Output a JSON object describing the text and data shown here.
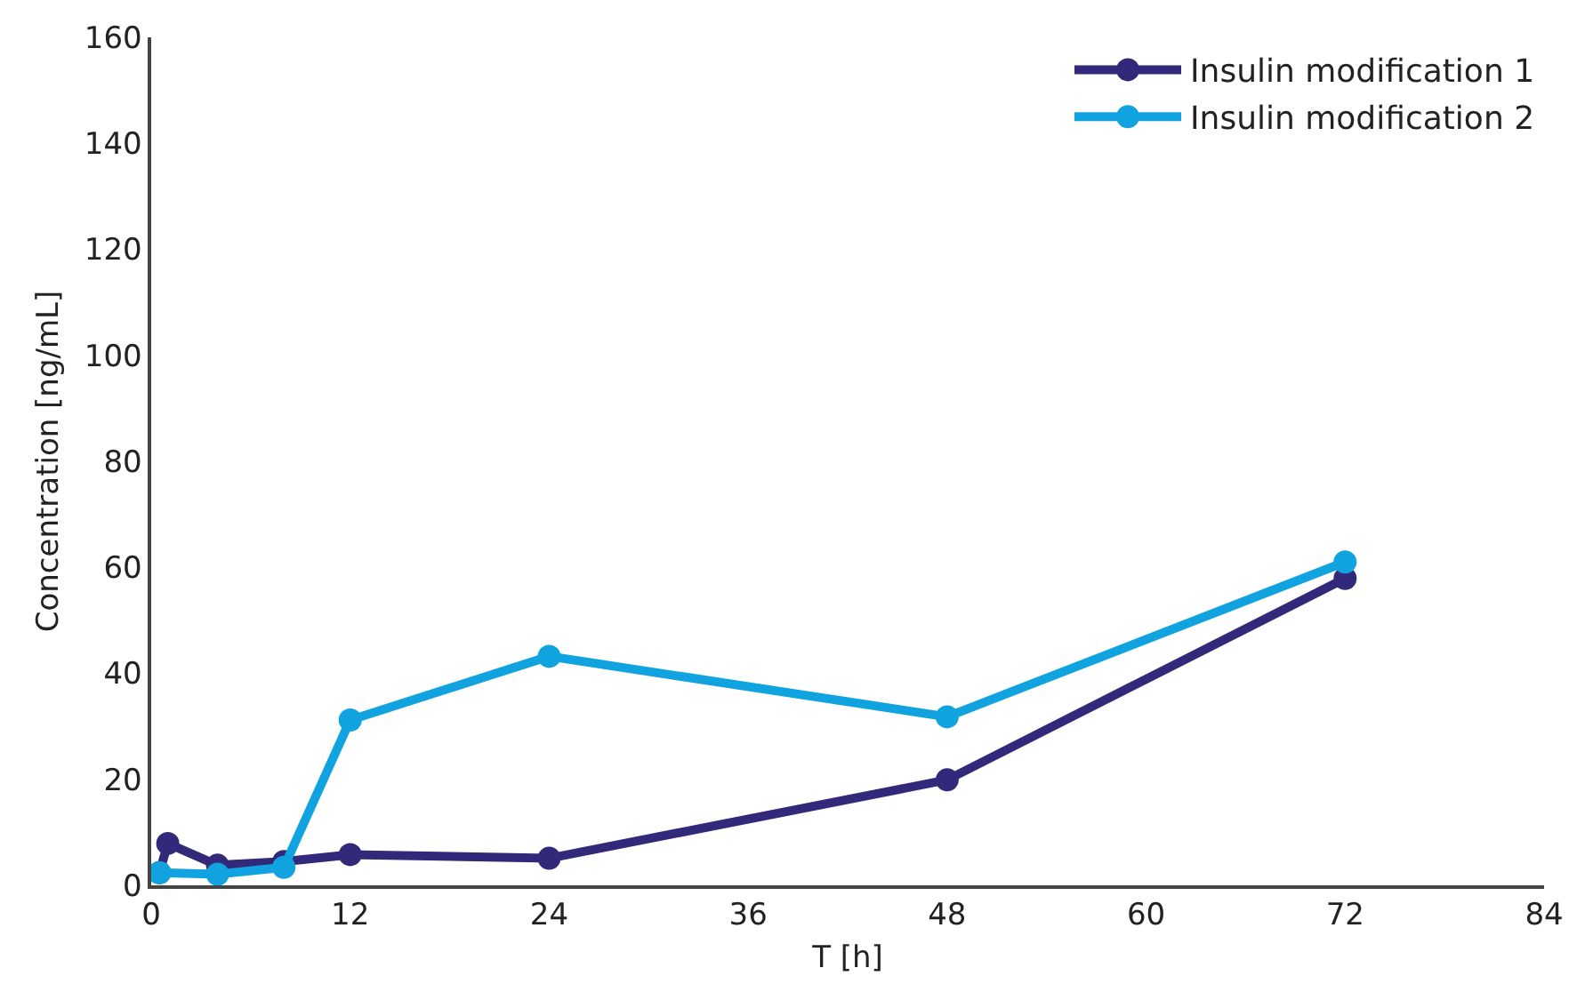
{
  "chart_data": {
    "type": "line",
    "xlabel": "T [h]",
    "ylabel": "Concentration [ng/mL]",
    "xlim": [
      0,
      84
    ],
    "xticks": [
      0,
      12,
      24,
      36,
      48,
      60,
      72,
      84
    ],
    "ylim": [
      0,
      160
    ],
    "yticks": [
      0,
      20,
      40,
      60,
      80,
      100,
      120,
      140,
      160
    ],
    "legend": "top right",
    "marker": "circle",
    "line_style": "solid",
    "series": [
      {
        "name": "Insulin modification 1",
        "color": "#32297a",
        "x": [
          0.5,
          1,
          4,
          8,
          12,
          24,
          48,
          72
        ],
        "values": [
          2.4,
          7.9,
          3.8,
          4.5,
          5.8,
          5.1,
          19.9,
          57.9
        ]
      },
      {
        "name": "Insulin modification 2",
        "color": "#10a3e0",
        "x": [
          0.5,
          4,
          8,
          12,
          24,
          48,
          72
        ],
        "values": [
          2.4,
          2.1,
          3.4,
          31.2,
          43.2,
          31.8,
          61
        ]
      }
    ]
  }
}
